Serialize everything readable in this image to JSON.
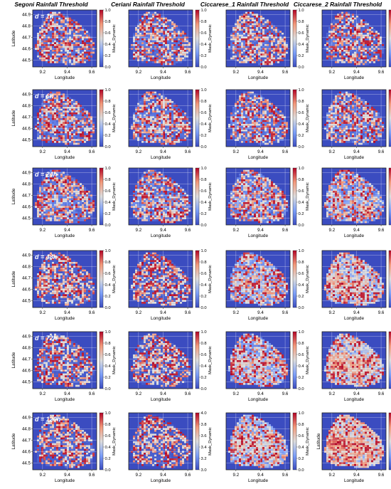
{
  "figure": {
    "columns": [
      "Segoni Rainfall Threshold",
      "Ceriani Rainfall Threshold",
      "Ciccarese_1 Rainfall Threshold",
      "Ciccarese_2 Rainfall Threshold"
    ],
    "durations": [
      "d = 1h",
      "d = 6h",
      "d = 24h",
      "d = 48h",
      "d = 72h",
      "d = 120h"
    ]
  },
  "chart_data": {
    "type": "heatmap",
    "xlabel": "Longitude",
    "ylabel": "Latitude",
    "colorbar_label": "Mask_Dynamic",
    "colormap": "coolwarm",
    "grid": true,
    "x_ticks": [
      9.2,
      9.4,
      9.6
    ],
    "y_ticks": [
      44.5,
      44.6,
      44.7,
      44.8,
      44.9
    ],
    "colorbar_ticks_default": [
      0.0,
      0.2,
      0.4,
      0.6,
      0.8,
      1.0
    ],
    "panels": [
      {
        "row": "d = 1h",
        "col": "Segoni Rainfall Threshold",
        "mean_level": 0.12
      },
      {
        "row": "d = 1h",
        "col": "Ceriani Rainfall Threshold",
        "mean_level": 0.12
      },
      {
        "row": "d = 1h",
        "col": "Ciccarese_1 Rainfall Threshold",
        "mean_level": 0.12
      },
      {
        "row": "d = 1h",
        "col": "Ciccarese_2 Rainfall Threshold",
        "mean_level": 0.12
      },
      {
        "row": "d = 6h",
        "col": "Segoni Rainfall Threshold",
        "mean_level": 0.14
      },
      {
        "row": "d = 6h",
        "col": "Ceriani Rainfall Threshold",
        "mean_level": 0.14
      },
      {
        "row": "d = 6h",
        "col": "Ciccarese_1 Rainfall Threshold",
        "mean_level": 0.15
      },
      {
        "row": "d = 6h",
        "col": "Ciccarese_2 Rainfall Threshold",
        "mean_level": 0.16
      },
      {
        "row": "d = 24h",
        "col": "Segoni Rainfall Threshold",
        "mean_level": 0.16
      },
      {
        "row": "d = 24h",
        "col": "Ceriani Rainfall Threshold",
        "mean_level": 0.16
      },
      {
        "row": "d = 24h",
        "col": "Ciccarese_1 Rainfall Threshold",
        "mean_level": 0.22
      },
      {
        "row": "d = 24h",
        "col": "Ciccarese_2 Rainfall Threshold",
        "mean_level": 0.28
      },
      {
        "row": "d = 48h",
        "col": "Segoni Rainfall Threshold",
        "mean_level": 0.08
      },
      {
        "row": "d = 48h",
        "col": "Ceriani Rainfall Threshold",
        "mean_level": 0.08
      },
      {
        "row": "d = 48h",
        "col": "Ciccarese_1 Rainfall Threshold",
        "mean_level": 0.32
      },
      {
        "row": "d = 48h",
        "col": "Ciccarese_2 Rainfall Threshold",
        "mean_level": 0.48
      },
      {
        "row": "d = 72h",
        "col": "Segoni Rainfall Threshold",
        "mean_level": 0.08
      },
      {
        "row": "d = 72h",
        "col": "Ceriani Rainfall Threshold",
        "mean_level": 0.08
      },
      {
        "row": "d = 72h",
        "col": "Ciccarese_1 Rainfall Threshold",
        "mean_level": 0.38
      },
      {
        "row": "d = 72h",
        "col": "Ciccarese_2 Rainfall Threshold",
        "mean_level": 0.56
      },
      {
        "row": "d = 120h",
        "col": "Segoni Rainfall Threshold",
        "mean_level": 0.08,
        "colorbar_ticks": [
          0.0,
          0.2,
          0.4,
          0.6,
          0.8,
          1.0
        ]
      },
      {
        "row": "d = 120h",
        "col": "Ceriani Rainfall Threshold",
        "mean_level": 0.06,
        "colorbar_ticks": [
          3.0,
          3.2,
          3.4,
          3.6,
          3.8,
          4.0
        ]
      },
      {
        "row": "d = 120h",
        "col": "Ciccarese_1 Rainfall Threshold",
        "mean_level": 0.42
      },
      {
        "row": "d = 120h",
        "col": "Ciccarese_2 Rainfall Threshold",
        "mean_level": 0.7
      }
    ]
  }
}
